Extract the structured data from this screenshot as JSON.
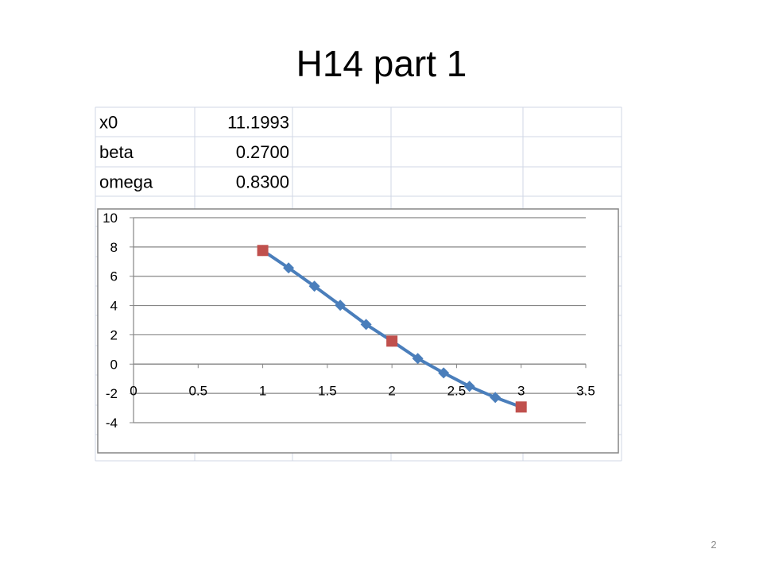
{
  "header": {
    "title": "H14 part 1"
  },
  "table": {
    "rows": [
      [
        "x0",
        "11.1993"
      ],
      [
        "beta",
        "0.2700"
      ],
      [
        "omega",
        "0.8300"
      ]
    ]
  },
  "chart_data": {
    "type": "scatter",
    "series": [
      {
        "color": "#4a7ebb",
        "marker": "diamond",
        "line": true,
        "x": [
          1,
          1.2,
          1.4,
          1.6,
          1.8,
          2,
          2.2,
          2.4,
          2.6,
          2.8,
          3
        ],
        "values": [
          7.76,
          6.57,
          5.32,
          4.02,
          2.71,
          1.57,
          0.38,
          -0.6,
          -1.52,
          -2.28,
          -2.93
        ]
      },
      {
        "color": "#c0504d",
        "marker": "square",
        "line": false,
        "x": [
          1,
          2,
          3
        ],
        "values": [
          7.76,
          1.57,
          -2.93
        ]
      }
    ],
    "xlim": [
      0,
      3.5
    ],
    "xticks": [
      0,
      0.5,
      1,
      1.5,
      2,
      2.5,
      3,
      3.5
    ],
    "ylim": [
      -4,
      10
    ],
    "yticks": [
      -4,
      -2,
      0,
      2,
      4,
      6,
      8,
      10
    ],
    "grid": true
  },
  "footer": {
    "page_number": "2"
  }
}
